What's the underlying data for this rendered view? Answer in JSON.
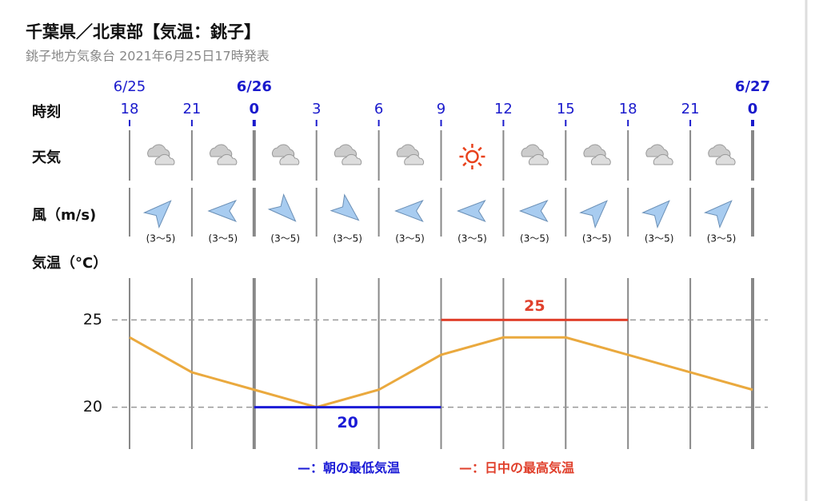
{
  "chart_data": {
    "type": "line",
    "title": "千葉県／北東部【気温：銚子】",
    "subtitle": "銚子地方気象台 2021年6月25日17時発表",
    "row_labels": [
      "時刻",
      "天気",
      "風（m/s)",
      "気温（°C）"
    ],
    "dates": [
      "6/25",
      null,
      "6/26",
      null,
      null,
      null,
      null,
      null,
      null,
      null,
      "6/27"
    ],
    "categories": [
      "18",
      "21",
      "0",
      "3",
      "6",
      "9",
      "12",
      "15",
      "18",
      "21",
      "0"
    ],
    "wind_labels": [
      "(3〜5)",
      "(3〜5)",
      "(3〜5)",
      "(3〜5)",
      "(3〜5)",
      "(3〜5)",
      "(3〜5)",
      "(3〜5)",
      "(3〜5)",
      "(3〜5)"
    ],
    "series": [
      {
        "color": "#eaa93e",
        "values": [
          24,
          22,
          21,
          20,
          21,
          23,
          24,
          24,
          23,
          22,
          21
        ]
      },
      {
        "name": "朝の最低気温",
        "color": "#1a1ad6",
        "values": [
          null,
          null,
          20,
          20,
          20,
          20,
          null,
          null,
          null,
          null,
          null
        ]
      },
      {
        "name": "日中の最高気温",
        "color": "#e0402c",
        "values": [
          null,
          null,
          null,
          null,
          null,
          25,
          25,
          25,
          25,
          null,
          null
        ]
      }
    ],
    "legend_mark": "—：",
    "ylim": [
      17.6,
      27.4
    ],
    "yticks": [
      20,
      25
    ],
    "grid": true
  }
}
